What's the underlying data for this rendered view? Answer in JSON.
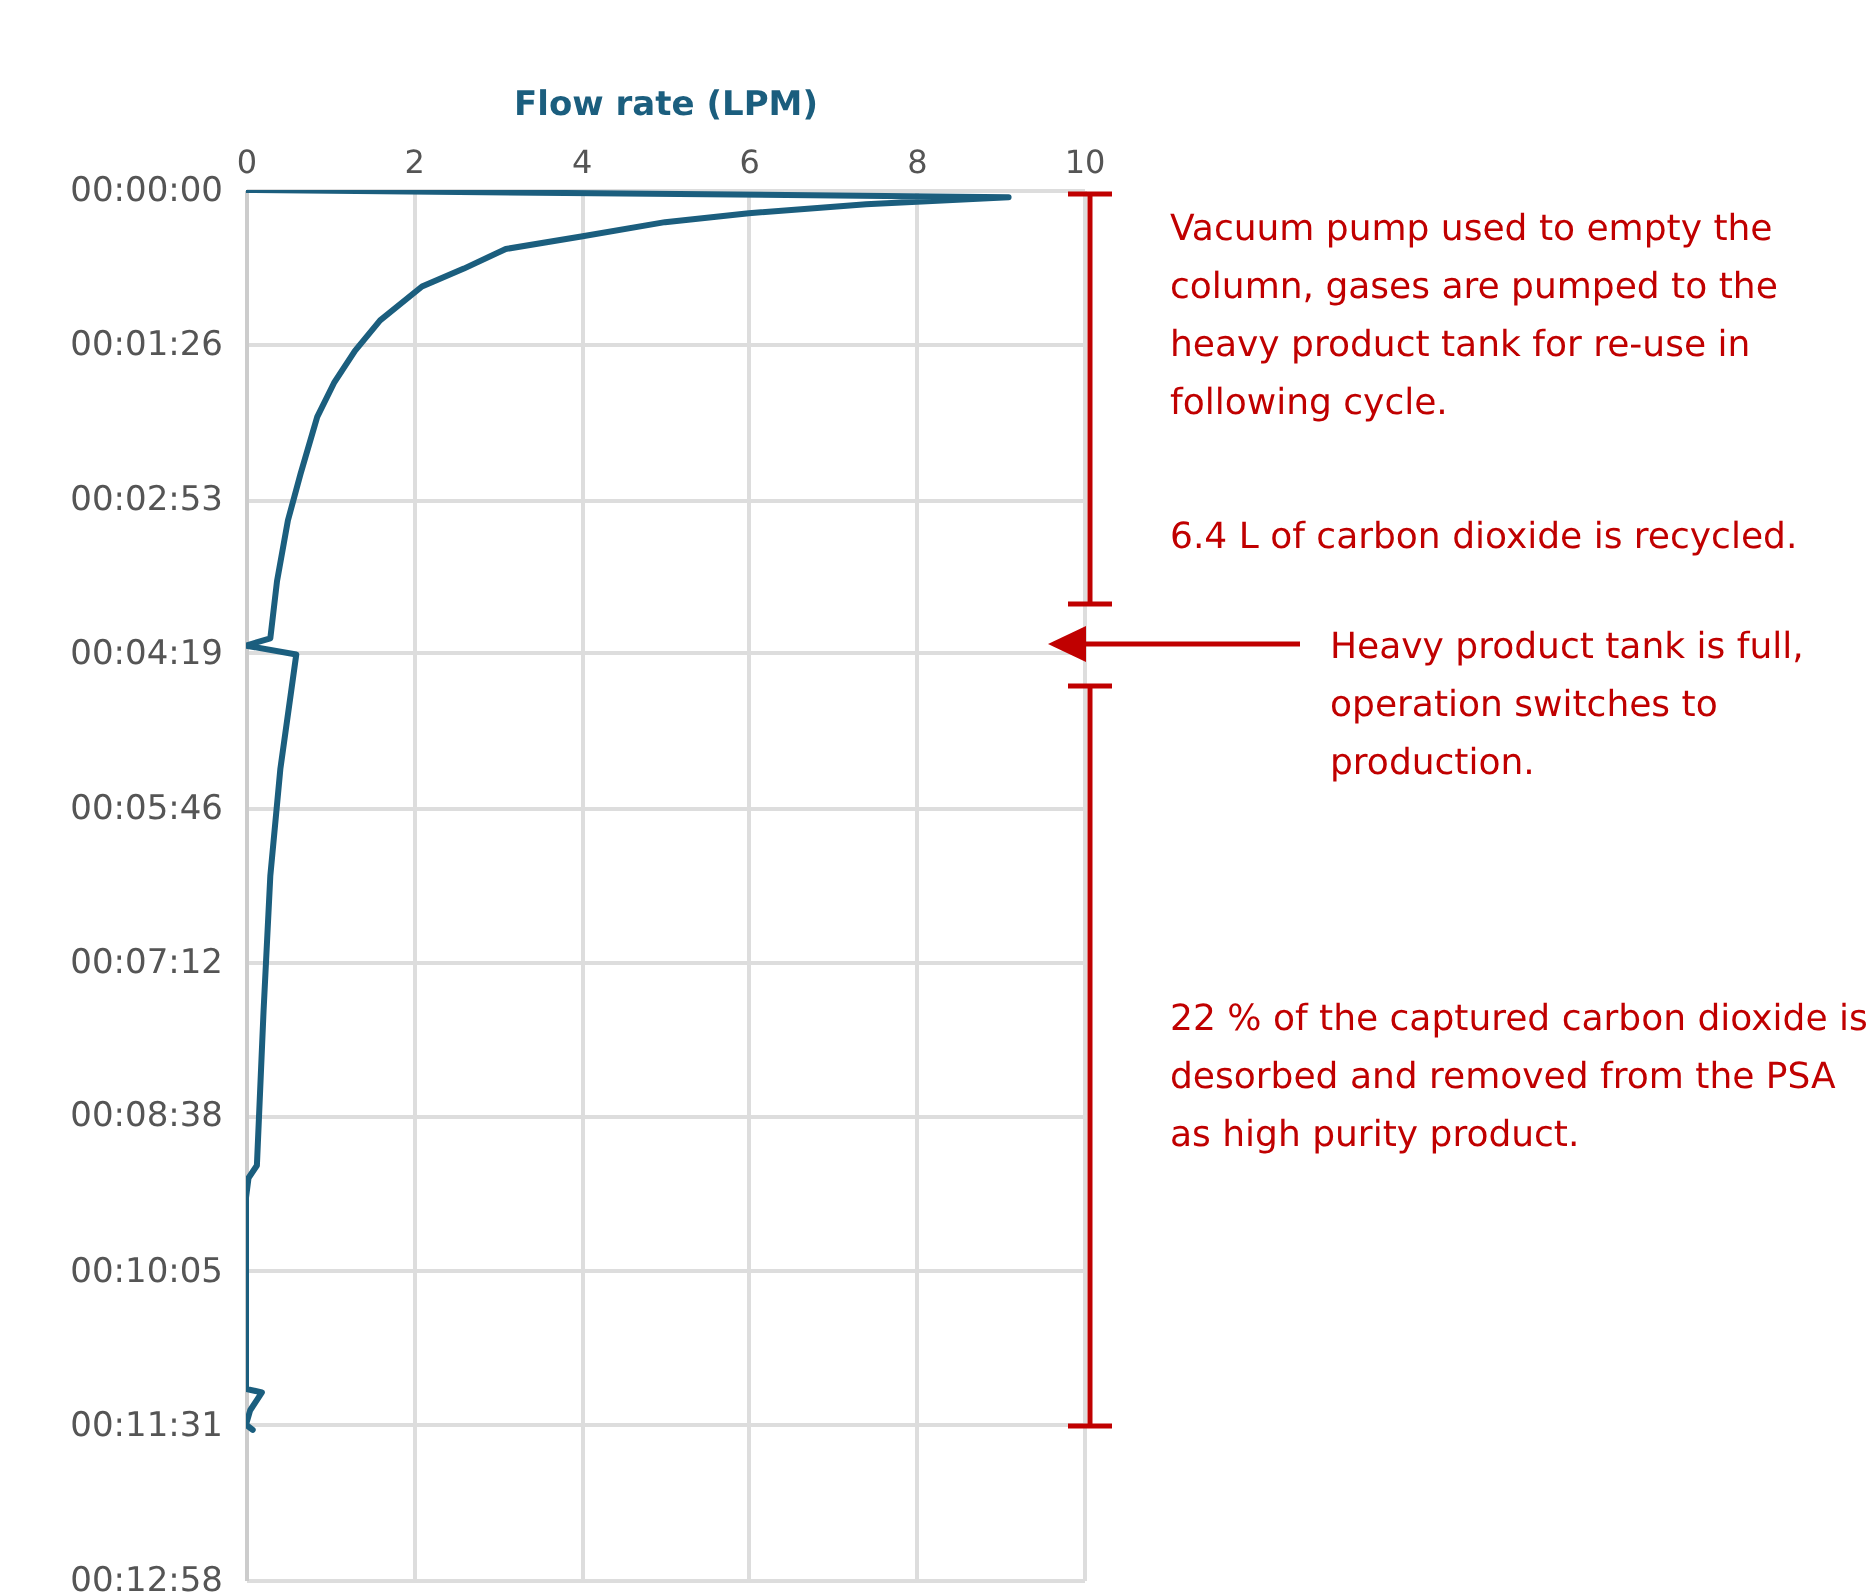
{
  "chart_data": {
    "type": "line",
    "xlabel": "Flow rate (LPM)",
    "xlim": [
      0,
      10
    ],
    "xticks": [
      0,
      2,
      4,
      6,
      8,
      10
    ],
    "ylim": [
      778,
      0
    ],
    "yticks": [
      {
        "value": 0,
        "label": "00:00:00"
      },
      {
        "value": 86,
        "label": "00:01:26"
      },
      {
        "value": 173,
        "label": "00:02:53"
      },
      {
        "value": 259,
        "label": "00:04:19"
      },
      {
        "value": 346,
        "label": "00:05:46"
      },
      {
        "value": 432,
        "label": "00:07:12"
      },
      {
        "value": 518,
        "label": "00:08:38"
      },
      {
        "value": 605,
        "label": "00:10:05"
      },
      {
        "value": 691,
        "label": "00:11:31"
      },
      {
        "value": 778,
        "label": "00:12:58"
      }
    ],
    "grid": true,
    "series": [
      {
        "color": "#1b5e7e",
        "x": [
          0,
          9.1,
          7.4,
          6.0,
          5.0,
          4.0,
          3.1,
          2.6,
          2.1,
          1.6,
          1.3,
          1.05,
          0.85,
          0.65,
          0.5,
          0.37,
          0.29,
          0,
          0.6,
          0.41,
          0.29,
          0.21,
          0.13,
          0.03,
          0,
          0,
          0.19,
          0.05,
          0,
          0.08
        ],
        "values": [
          0,
          4,
          8,
          13,
          18,
          26,
          33,
          44,
          54,
          73,
          90,
          108,
          127,
          159,
          185,
          219,
          251,
          255,
          260,
          324,
          384,
          459,
          546,
          553,
          564,
          671,
          673,
          683,
          691,
          694
        ]
      }
    ],
    "annotations": [
      "Vacuum pump used to empty the column, gases are pumped to the heavy product tank for re-use in following cycle.",
      "6.4 L of carbon dioxide is recycled.",
      "Heavy product tank is full, operation switches to production.",
      "22 % of the captured carbon dioxide is desorbed and removed from the PSA as high purity product."
    ]
  }
}
